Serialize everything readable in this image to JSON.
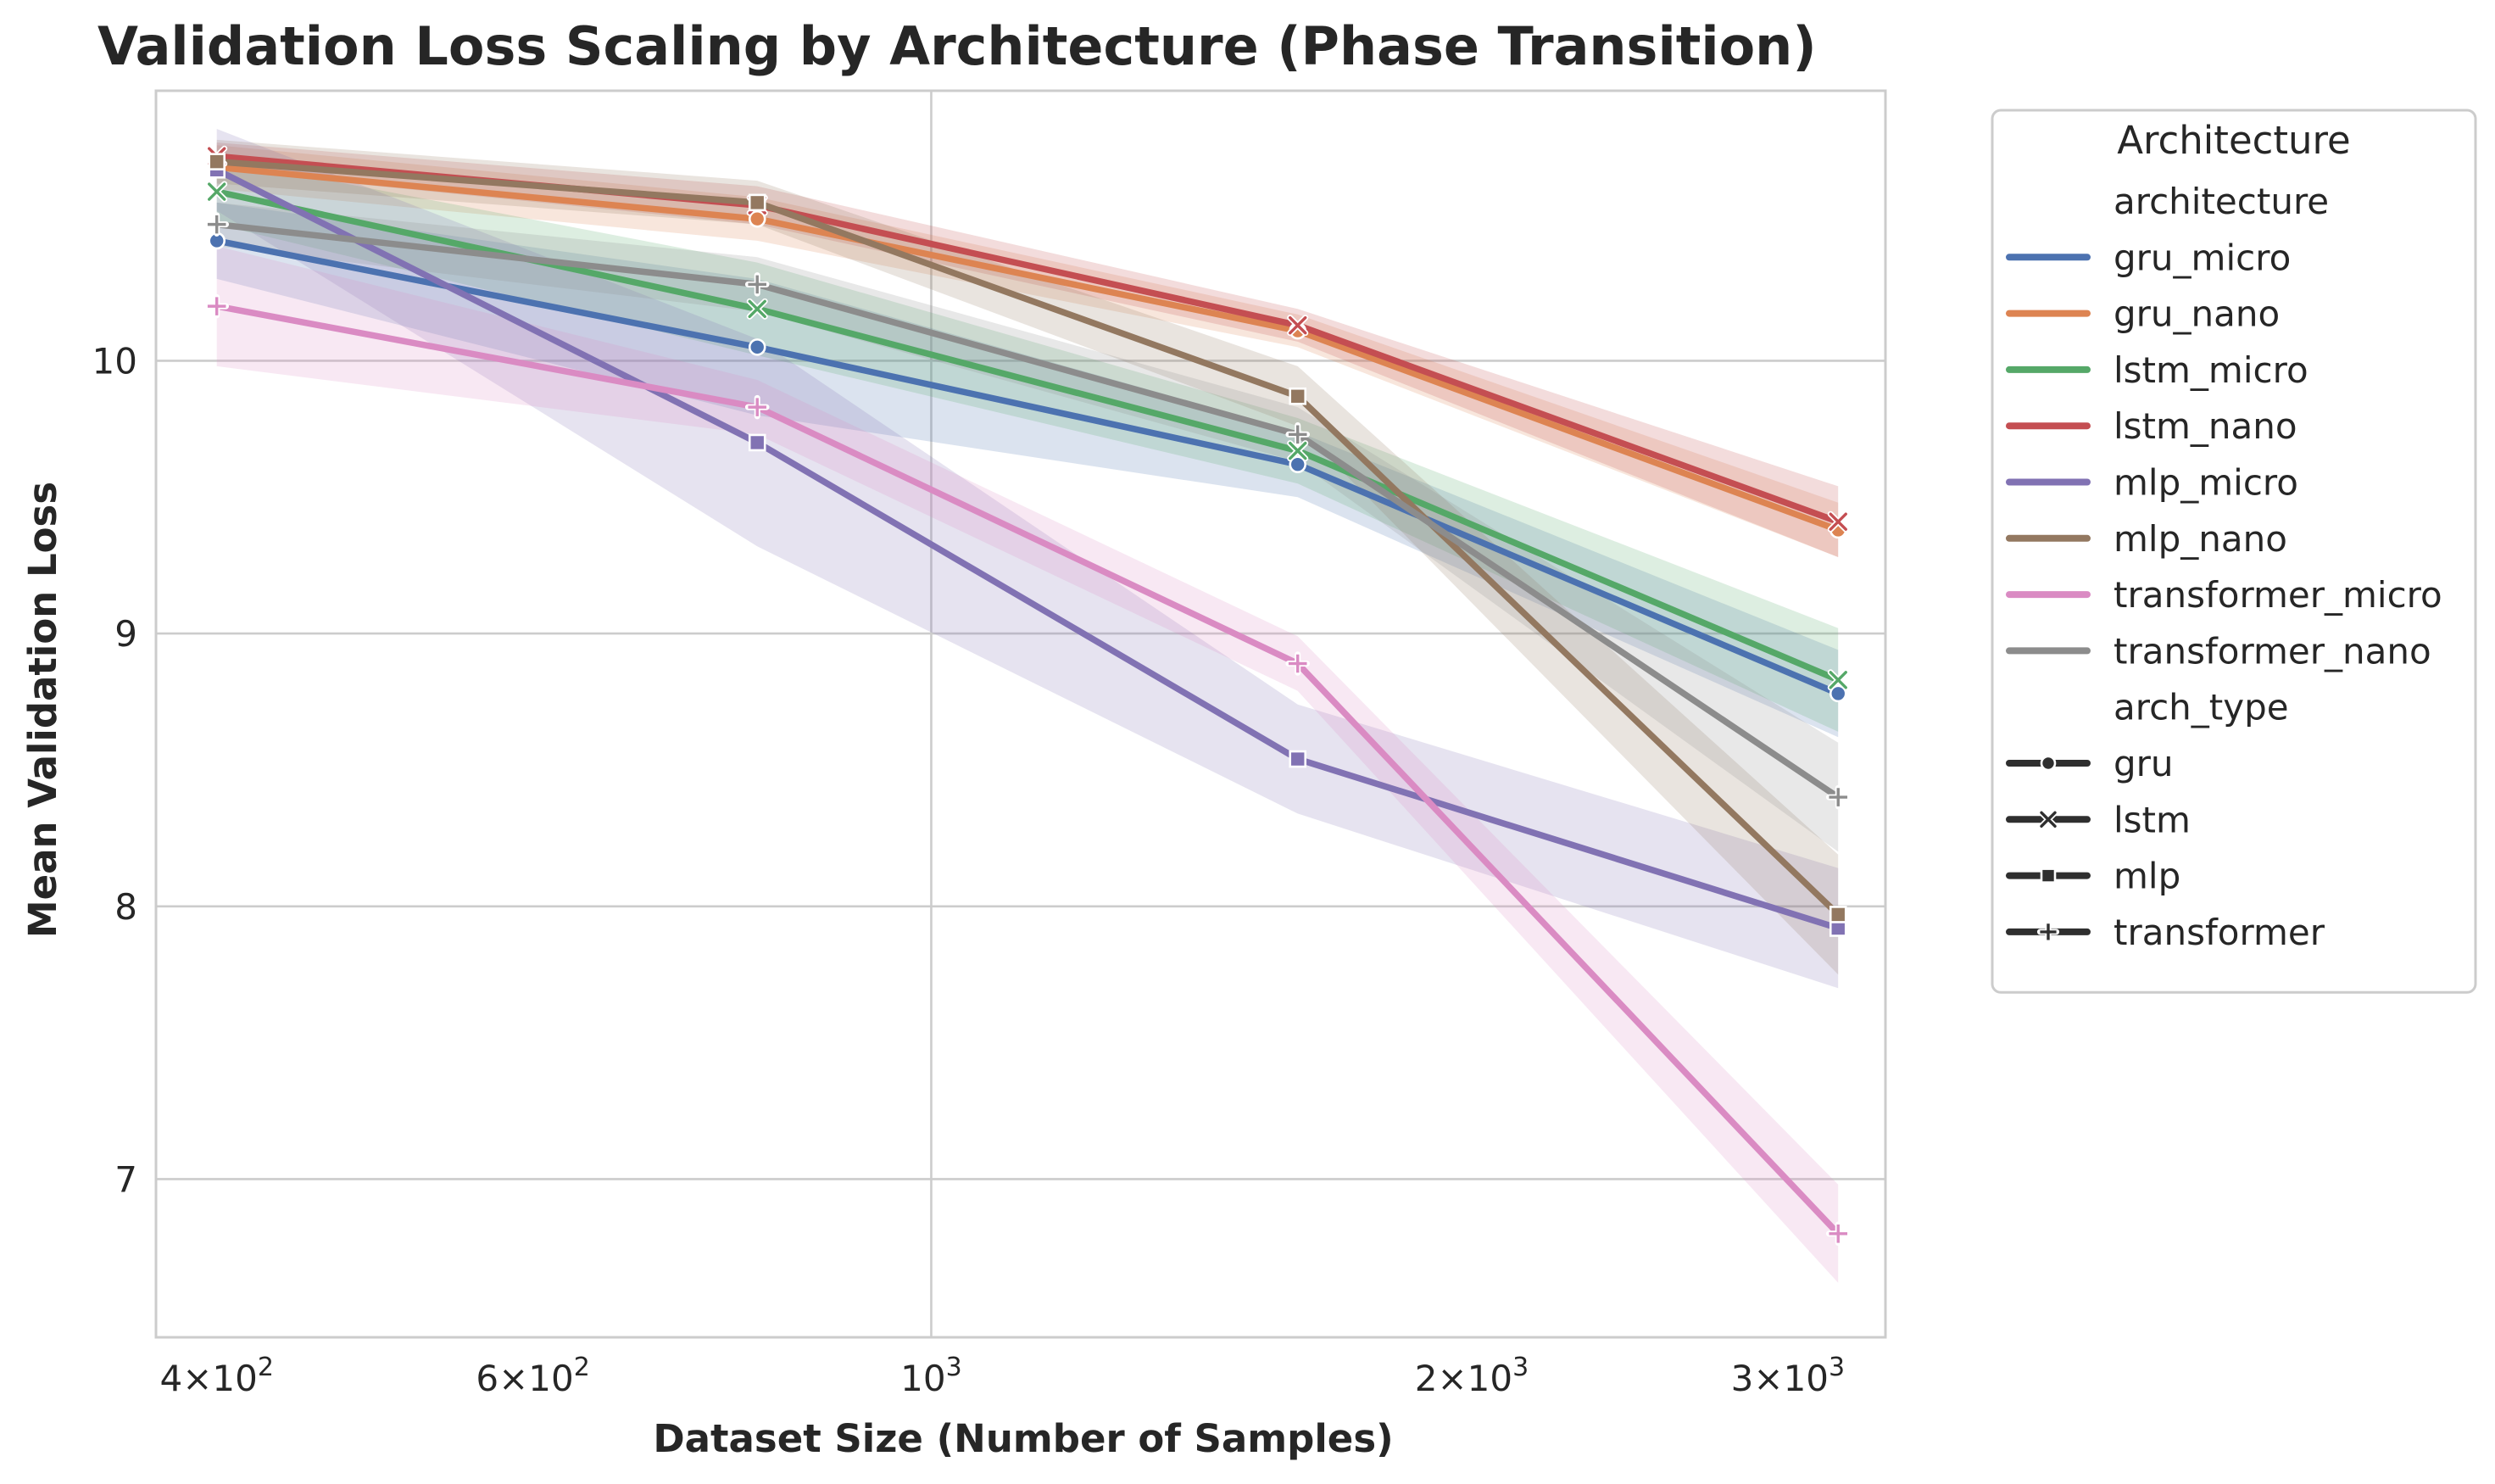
{
  "chart_data": {
    "type": "line",
    "title": "Validation Loss Scaling by Architecture (Phase Transition)",
    "xlabel": "Dataset Size (Number of Samples)",
    "ylabel": "Mean Validation Loss",
    "xscale": "log",
    "xlim": [
      370,
      3400
    ],
    "ylim": [
      6.42,
      10.99
    ],
    "grid": true,
    "x_ticks": [
      {
        "value": 400,
        "base": "4×10",
        "exp": "2"
      },
      {
        "value": 600,
        "base": "6×10",
        "exp": "2"
      },
      {
        "value": 1000,
        "base": "10",
        "exp": "3"
      },
      {
        "value": 2000,
        "base": "2×10",
        "exp": "3"
      },
      {
        "value": 3000,
        "base": "3×10",
        "exp": "3"
      }
    ],
    "y_ticks": [
      7,
      8,
      9,
      10
    ],
    "x": [
      400,
      800,
      1600,
      3200
    ],
    "legend": {
      "title": "Architecture",
      "placement": "outside-right",
      "hue_header": "architecture",
      "style_header": "arch_type",
      "styles": [
        {
          "name": "gru",
          "marker": "circle"
        },
        {
          "name": "lstm",
          "marker": "x"
        },
        {
          "name": "mlp",
          "marker": "square"
        },
        {
          "name": "transformer",
          "marker": "plus"
        }
      ]
    },
    "series": [
      {
        "name": "gru_micro",
        "arch_type": "gru",
        "color": "#4c72b0",
        "marker": "circle",
        "values": [
          10.44,
          10.05,
          9.62,
          8.78
        ],
        "ci_low": [
          10.3,
          9.8,
          9.5,
          8.62
        ],
        "ci_high": [
          10.58,
          10.3,
          9.74,
          8.94
        ]
      },
      {
        "name": "gru_nano",
        "arch_type": "gru",
        "color": "#dd8452",
        "marker": "circle",
        "values": [
          10.71,
          10.52,
          10.11,
          9.38
        ],
        "ci_low": [
          10.63,
          10.44,
          10.05,
          9.28
        ],
        "ci_high": [
          10.79,
          10.6,
          10.17,
          9.48
        ]
      },
      {
        "name": "lstm_micro",
        "arch_type": "lstm",
        "color": "#55a868",
        "marker": "x",
        "values": [
          10.62,
          10.19,
          9.67,
          8.83
        ],
        "ci_low": [
          10.5,
          10.02,
          9.55,
          8.64
        ],
        "ci_high": [
          10.74,
          10.36,
          9.79,
          9.02
        ]
      },
      {
        "name": "lstm_nano",
        "arch_type": "lstm",
        "color": "#c44e52",
        "marker": "x",
        "values": [
          10.75,
          10.57,
          10.13,
          9.41
        ],
        "ci_low": [
          10.7,
          10.5,
          10.07,
          9.28
        ],
        "ci_high": [
          10.8,
          10.64,
          10.19,
          9.54
        ]
      },
      {
        "name": "mlp_micro",
        "arch_type": "mlp",
        "color": "#8172b3",
        "marker": "square",
        "values": [
          10.7,
          9.7,
          8.54,
          7.92
        ],
        "ci_low": [
          10.55,
          9.32,
          8.34,
          7.7
        ],
        "ci_high": [
          10.85,
          10.08,
          8.74,
          8.14
        ]
      },
      {
        "name": "mlp_nano",
        "arch_type": "mlp",
        "color": "#937860",
        "marker": "square",
        "values": [
          10.73,
          10.58,
          9.87,
          7.97
        ],
        "ci_low": [
          10.65,
          10.5,
          9.76,
          7.75
        ],
        "ci_high": [
          10.81,
          10.66,
          9.98,
          8.19
        ]
      },
      {
        "name": "transformer_micro",
        "arch_type": "transformer",
        "color": "#da8bc3",
        "marker": "plus",
        "values": [
          10.2,
          9.83,
          8.89,
          6.8
        ],
        "ci_low": [
          9.98,
          9.73,
          8.79,
          6.62
        ],
        "ci_high": [
          10.42,
          9.93,
          8.99,
          6.98
        ]
      },
      {
        "name": "transformer_nano",
        "arch_type": "transformer",
        "color": "#8c8c8c",
        "marker": "plus",
        "values": [
          10.5,
          10.28,
          9.73,
          8.4
        ],
        "ci_low": [
          10.42,
          10.18,
          9.63,
          8.2
        ],
        "ci_high": [
          10.58,
          10.38,
          9.83,
          8.6
        ]
      }
    ]
  }
}
